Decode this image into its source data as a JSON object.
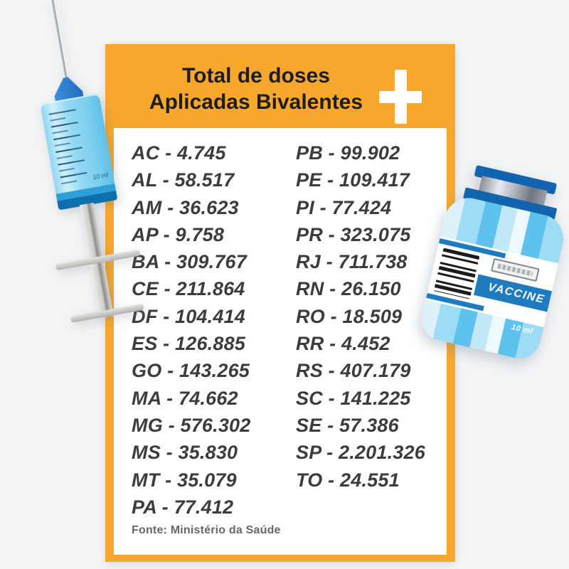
{
  "page": {
    "background": "#f3f4f5"
  },
  "card": {
    "accent": "#f7a72c",
    "title_line1": "Total de doses",
    "title_line2": "Aplicadas Bivalentes",
    "source": "Fonte: Ministério da Saúde"
  },
  "doses": {
    "left": [
      {
        "state": "AC",
        "value": "4.745"
      },
      {
        "state": "AL",
        "value": "58.517"
      },
      {
        "state": "AM",
        "value": "36.623"
      },
      {
        "state": "AP",
        "value": "9.758"
      },
      {
        "state": "BA",
        "value": "309.767"
      },
      {
        "state": "CE",
        "value": "211.864"
      },
      {
        "state": "DF",
        "value": "104.414"
      },
      {
        "state": "ES",
        "value": "126.885"
      },
      {
        "state": "GO",
        "value": "143.265"
      },
      {
        "state": "MA",
        "value": "74.662"
      },
      {
        "state": "MG",
        "value": "576.302"
      },
      {
        "state": "MS",
        "value": "35.830"
      },
      {
        "state": "MT",
        "value": "35.079"
      },
      {
        "state": "PA",
        "value": "77.412"
      }
    ],
    "right": [
      {
        "state": "PB",
        "value": "99.902"
      },
      {
        "state": "PE",
        "value": "109.417"
      },
      {
        "state": "PI",
        "value": "77.424"
      },
      {
        "state": "PR",
        "value": "323.075"
      },
      {
        "state": "RJ",
        "value": "711.738"
      },
      {
        "state": "RN",
        "value": "26.150"
      },
      {
        "state": "RO",
        "value": "18.509"
      },
      {
        "state": "RR",
        "value": "4.452"
      },
      {
        "state": "RS",
        "value": "407.179"
      },
      {
        "state": "SC",
        "value": "141.225"
      },
      {
        "state": "SE",
        "value": "57.386"
      },
      {
        "state": "SP",
        "value": "2.201.326"
      },
      {
        "state": "TO",
        "value": "24.551"
      }
    ]
  },
  "illustrations": {
    "vial_label": "VACCINE",
    "vial_volume": "10 ml",
    "syringe_volume": "10 ml"
  },
  "chart_data": {
    "type": "table",
    "title": "Total de doses Aplicadas Bivalentes",
    "source": "Fonte: Ministério da Saúde",
    "unit": "doses",
    "categories": [
      "AC",
      "AL",
      "AM",
      "AP",
      "BA",
      "CE",
      "DF",
      "ES",
      "GO",
      "MA",
      "MG",
      "MS",
      "MT",
      "PA",
      "PB",
      "PE",
      "PI",
      "PR",
      "RJ",
      "RN",
      "RO",
      "RR",
      "RS",
      "SC",
      "SE",
      "SP",
      "TO"
    ],
    "values": [
      4745,
      58517,
      36623,
      9758,
      309767,
      211864,
      104414,
      126885,
      143265,
      74662,
      576302,
      35830,
      35079,
      77412,
      99902,
      109417,
      77424,
      323075,
      711738,
      26150,
      18509,
      4452,
      407179,
      141225,
      57386,
      2201326,
      24551
    ],
    "value_labels": [
      "4.745",
      "58.517",
      "36.623",
      "9.758",
      "309.767",
      "211.864",
      "104.414",
      "126.885",
      "143.265",
      "74.662",
      "576.302",
      "35.830",
      "35.079",
      "77.412",
      "99.902",
      "109.417",
      "77.424",
      "323.075",
      "711.738",
      "26.150",
      "18.509",
      "4.452",
      "407.179",
      "141.225",
      "57.386",
      "2.201.326",
      "24.551"
    ]
  }
}
